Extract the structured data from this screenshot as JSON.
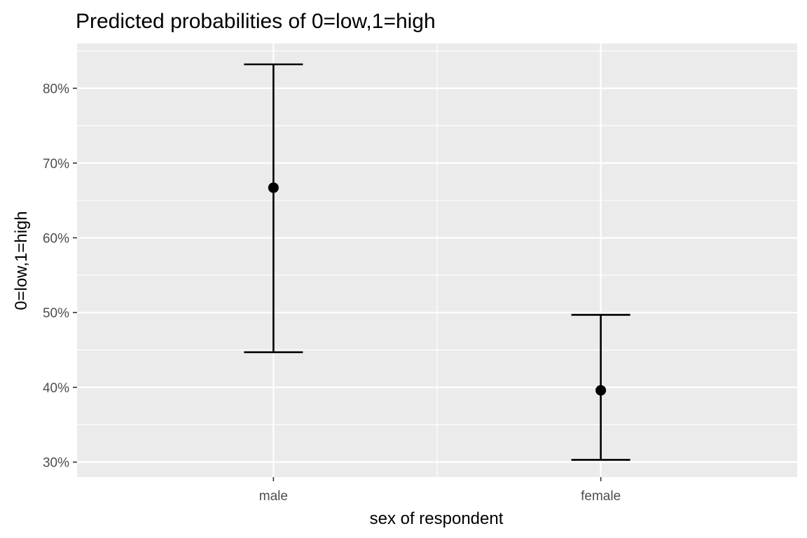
{
  "chart_data": {
    "type": "errorbar",
    "title": "Predicted probabilities of 0=low,1=high",
    "xlabel": "sex of respondent",
    "ylabel": "0=low,1=high",
    "categories": [
      "male",
      "female"
    ],
    "points": [
      {
        "category": "male",
        "estimate": 0.667,
        "lower": 0.447,
        "upper": 0.832
      },
      {
        "category": "female",
        "estimate": 0.396,
        "lower": 0.303,
        "upper": 0.497
      }
    ],
    "yticks": [
      0.3,
      0.4,
      0.5,
      0.6,
      0.7,
      0.8
    ],
    "ytick_labels": [
      "30%",
      "40%",
      "50%",
      "60%",
      "70%",
      "80%"
    ],
    "ylim": [
      0.28,
      0.86
    ],
    "grid": true,
    "legend": "none",
    "colors": {
      "panel": "#ebebeb",
      "grid": "#ffffff",
      "marks": "#000000",
      "tick_text": "#4d4d4d"
    }
  }
}
